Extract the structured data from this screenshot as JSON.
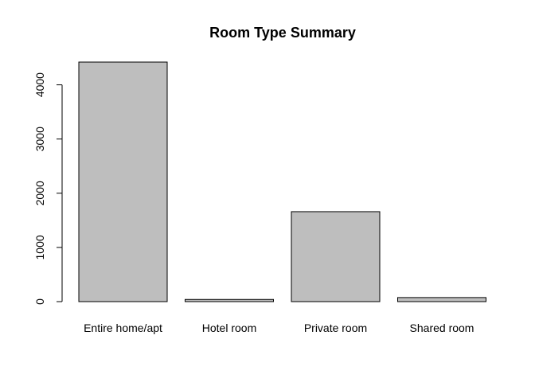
{
  "chart_data": {
    "type": "bar",
    "title": "Room Type Summary",
    "xlabel": "",
    "ylabel": "",
    "categories": [
      "Entire home/apt",
      "Hotel room",
      "Private room",
      "Shared room"
    ],
    "values": [
      4420,
      40,
      1660,
      75
    ],
    "ylim": [
      0,
      4420
    ],
    "yticks": [
      0,
      1000,
      2000,
      3000,
      4000
    ],
    "bar_color": "#bebebe",
    "border_color": "#000000",
    "grid": false,
    "legend": "none"
  }
}
